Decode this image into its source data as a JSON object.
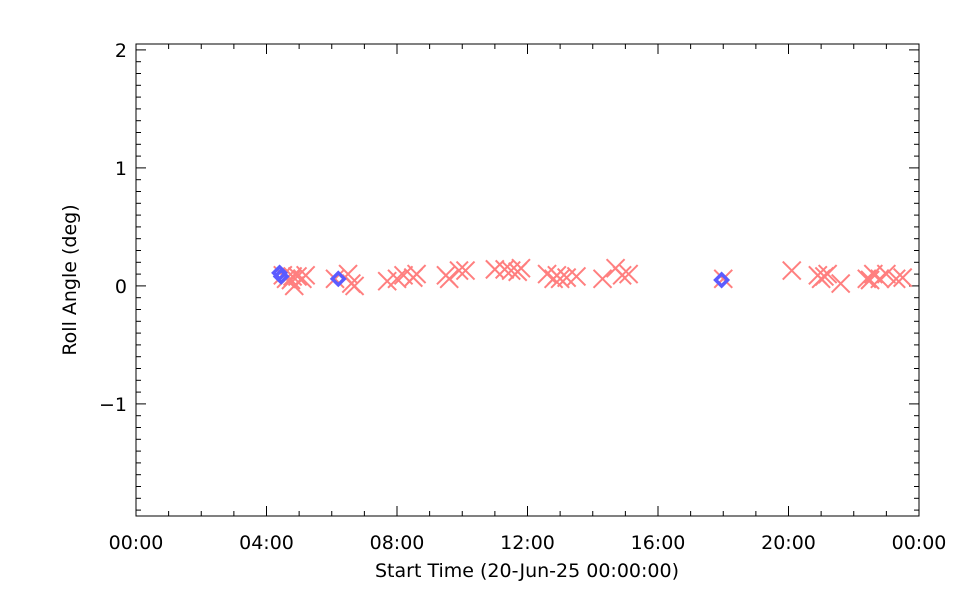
{
  "chart_data": {
    "type": "scatter",
    "xlabel": "Start Time (20-Jun-25 00:00:00)",
    "ylabel": "Roll Angle (deg)",
    "x_unit": "hours",
    "xlim": [
      0,
      24
    ],
    "ylim": [
      -1.95,
      2.05
    ],
    "x_ticks": [
      {
        "value": 0,
        "label": "00:00"
      },
      {
        "value": 4,
        "label": "04:00"
      },
      {
        "value": 8,
        "label": "08:00"
      },
      {
        "value": 12,
        "label": "12:00"
      },
      {
        "value": 16,
        "label": "16:00"
      },
      {
        "value": 20,
        "label": "20:00"
      },
      {
        "value": 24,
        "label": "00:00"
      }
    ],
    "y_ticks": [
      {
        "value": -1,
        "label": "−1"
      },
      {
        "value": 0,
        "label": "0"
      },
      {
        "value": 1,
        "label": "1"
      },
      {
        "value": 2,
        "label": "2"
      }
    ],
    "grid": false,
    "series": [
      {
        "marker": "x",
        "color": "#ff7f7f",
        "points": [
          [
            4.5,
            0.09
          ],
          [
            4.6,
            0.06
          ],
          [
            4.75,
            0.05
          ],
          [
            4.8,
            0.08
          ],
          [
            4.85,
            0.0
          ],
          [
            4.95,
            0.08
          ],
          [
            5.1,
            0.06
          ],
          [
            5.2,
            0.09
          ],
          [
            6.1,
            0.06
          ],
          [
            6.5,
            0.1
          ],
          [
            6.6,
            0.02
          ],
          [
            6.7,
            0.0
          ],
          [
            7.7,
            0.04
          ],
          [
            8.0,
            0.06
          ],
          [
            8.2,
            0.09
          ],
          [
            8.5,
            0.07
          ],
          [
            8.6,
            0.1
          ],
          [
            9.5,
            0.09
          ],
          [
            9.6,
            0.06
          ],
          [
            9.9,
            0.13
          ],
          [
            10.1,
            0.13
          ],
          [
            11.0,
            0.14
          ],
          [
            11.3,
            0.14
          ],
          [
            11.5,
            0.13
          ],
          [
            11.7,
            0.12
          ],
          [
            11.8,
            0.15
          ],
          [
            12.6,
            0.1
          ],
          [
            12.8,
            0.06
          ],
          [
            12.9,
            0.09
          ],
          [
            13.0,
            0.06
          ],
          [
            13.2,
            0.07
          ],
          [
            13.5,
            0.08
          ],
          [
            14.3,
            0.06
          ],
          [
            14.7,
            0.15
          ],
          [
            14.9,
            0.09
          ],
          [
            15.1,
            0.1
          ],
          [
            18.0,
            0.06
          ],
          [
            20.1,
            0.13
          ],
          [
            20.9,
            0.09
          ],
          [
            21.0,
            0.06
          ],
          [
            21.1,
            0.08
          ],
          [
            21.2,
            0.1
          ],
          [
            21.6,
            0.02
          ],
          [
            22.4,
            0.06
          ],
          [
            22.5,
            0.05
          ],
          [
            22.6,
            0.1
          ],
          [
            22.8,
            0.06
          ],
          [
            23.0,
            0.1
          ],
          [
            23.3,
            0.06
          ],
          [
            23.5,
            0.07
          ]
        ]
      },
      {
        "marker": "diamond",
        "color": "#5b5bff",
        "points": [
          [
            4.4,
            0.11
          ],
          [
            4.45,
            0.08
          ],
          [
            6.2,
            0.06
          ],
          [
            17.95,
            0.05
          ]
        ]
      }
    ]
  }
}
